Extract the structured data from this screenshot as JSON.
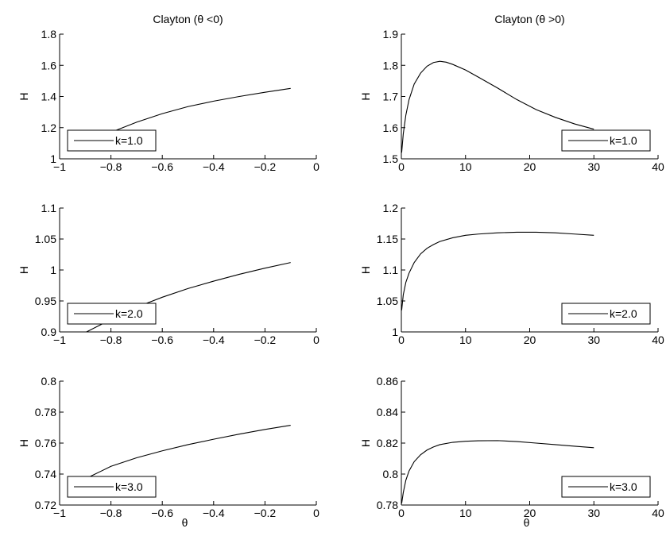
{
  "chart_data": [
    {
      "type": "line",
      "title": "Clayton (θ <0)",
      "xlabel": "",
      "ylabel": "H",
      "xlim": [
        -1,
        0
      ],
      "ylim": [
        1,
        1.8
      ],
      "xticks": [
        -1,
        -0.8,
        -0.6,
        -0.4,
        -0.2,
        0
      ],
      "xtick_labels": [
        "−1",
        "−0.8",
        "−0.6",
        "−0.4",
        "−0.2",
        "0"
      ],
      "yticks": [
        1,
        1.2,
        1.4,
        1.6,
        1.8
      ],
      "ytick_labels": [
        "1",
        "1.2",
        "1.4",
        "1.6",
        "1.8"
      ],
      "legend": "bottom-left",
      "series": [
        {
          "name": "k=1.0",
          "x": [
            -0.8,
            -0.7,
            -0.6,
            -0.5,
            -0.4,
            -0.3,
            -0.2,
            -0.1
          ],
          "y": [
            1.17,
            1.235,
            1.29,
            1.335,
            1.37,
            1.4,
            1.427,
            1.452
          ]
        }
      ]
    },
    {
      "type": "line",
      "title": "Clayton (θ >0)",
      "xlabel": "",
      "ylabel": "H",
      "xlim": [
        0,
        40
      ],
      "ylim": [
        1.5,
        1.9
      ],
      "xticks": [
        0,
        10,
        20,
        30,
        40
      ],
      "xtick_labels": [
        "0",
        "10",
        "20",
        "30",
        "40"
      ],
      "yticks": [
        1.5,
        1.6,
        1.7,
        1.8,
        1.9
      ],
      "ytick_labels": [
        "1.5",
        "1.6",
        "1.7",
        "1.8",
        "1.9"
      ],
      "legend": "bottom-right",
      "series": [
        {
          "name": "k=1.0",
          "x": [
            0.05,
            0.3,
            0.7,
            1.2,
            2,
            3,
            4,
            5,
            6,
            7,
            8,
            10,
            12,
            15,
            18,
            21,
            24,
            27,
            30
          ],
          "y": [
            1.52,
            1.58,
            1.64,
            1.69,
            1.74,
            1.775,
            1.797,
            1.809,
            1.813,
            1.81,
            1.803,
            1.785,
            1.762,
            1.727,
            1.69,
            1.658,
            1.633,
            1.612,
            1.595
          ]
        }
      ]
    },
    {
      "type": "line",
      "title": "",
      "xlabel": "",
      "ylabel": "H",
      "xlim": [
        -1,
        0
      ],
      "ylim": [
        0.9,
        1.1
      ],
      "xticks": [
        -1,
        -0.8,
        -0.6,
        -0.4,
        -0.2,
        0
      ],
      "xtick_labels": [
        "−1",
        "−0.8",
        "−0.6",
        "−0.4",
        "−0.2",
        "0"
      ],
      "yticks": [
        0.9,
        0.95,
        1,
        1.05,
        1.1
      ],
      "ytick_labels": [
        "0.9",
        "0.95",
        "1",
        "1.05",
        "1.1"
      ],
      "legend": "bottom-left",
      "series": [
        {
          "name": "k=2.0",
          "x": [
            -0.9,
            -0.8,
            -0.7,
            -0.6,
            -0.5,
            -0.4,
            -0.3,
            -0.2,
            -0.1
          ],
          "y": [
            0.899,
            0.92,
            0.94,
            0.956,
            0.97,
            0.982,
            0.993,
            1.003,
            1.012
          ]
        }
      ]
    },
    {
      "type": "line",
      "title": "",
      "xlabel": "",
      "ylabel": "H",
      "xlim": [
        0,
        40
      ],
      "ylim": [
        1,
        1.2
      ],
      "xticks": [
        0,
        10,
        20,
        30,
        40
      ],
      "xtick_labels": [
        "0",
        "10",
        "20",
        "30",
        "40"
      ],
      "yticks": [
        1,
        1.05,
        1.1,
        1.15,
        1.2
      ],
      "ytick_labels": [
        "1",
        "1.05",
        "1.1",
        "1.15",
        "1.2"
      ],
      "legend": "bottom-right",
      "series": [
        {
          "name": "k=2.0",
          "x": [
            0.05,
            0.3,
            0.7,
            1.2,
            2,
            3,
            4,
            5,
            6,
            8,
            10,
            12,
            15,
            18,
            21,
            24,
            27,
            30
          ],
          "y": [
            1.035,
            1.06,
            1.08,
            1.095,
            1.112,
            1.126,
            1.135,
            1.141,
            1.146,
            1.152,
            1.156,
            1.158,
            1.16,
            1.161,
            1.161,
            1.16,
            1.158,
            1.156
          ]
        }
      ]
    },
    {
      "type": "line",
      "title": "",
      "xlabel": "θ",
      "ylabel": "H",
      "xlim": [
        -1,
        0
      ],
      "ylim": [
        0.72,
        0.8
      ],
      "xticks": [
        -1,
        -0.8,
        -0.6,
        -0.4,
        -0.2,
        0
      ],
      "xtick_labels": [
        "−1",
        "−0.8",
        "−0.6",
        "−0.4",
        "−0.2",
        "0"
      ],
      "yticks": [
        0.72,
        0.74,
        0.76,
        0.78,
        0.8
      ],
      "ytick_labels": [
        "0.72",
        "0.74",
        "0.76",
        "0.78",
        "0.8"
      ],
      "legend": "bottom-left",
      "series": [
        {
          "name": "k=3.0",
          "x": [
            -0.88,
            -0.8,
            -0.7,
            -0.6,
            -0.5,
            -0.4,
            -0.3,
            -0.2,
            -0.1
          ],
          "y": [
            0.7385,
            0.745,
            0.7505,
            0.755,
            0.759,
            0.7625,
            0.7658,
            0.7688,
            0.7715
          ]
        }
      ]
    },
    {
      "type": "line",
      "title": "",
      "xlabel": "θ",
      "ylabel": "H",
      "xlim": [
        0,
        40
      ],
      "ylim": [
        0.78,
        0.86
      ],
      "xticks": [
        0,
        10,
        20,
        30,
        40
      ],
      "xtick_labels": [
        "0",
        "10",
        "20",
        "30",
        "40"
      ],
      "yticks": [
        0.78,
        0.8,
        0.82,
        0.84,
        0.86
      ],
      "ytick_labels": [
        "0.78",
        "0.8",
        "0.82",
        "0.84",
        "0.86"
      ],
      "legend": "bottom-right",
      "series": [
        {
          "name": "k=3.0",
          "x": [
            0.05,
            0.3,
            0.7,
            1.2,
            2,
            3,
            4,
            5,
            6,
            8,
            10,
            12,
            15,
            18,
            21,
            24,
            27,
            30
          ],
          "y": [
            0.781,
            0.788,
            0.796,
            0.802,
            0.808,
            0.8125,
            0.8155,
            0.8175,
            0.819,
            0.8205,
            0.8212,
            0.8215,
            0.8216,
            0.821,
            0.82,
            0.819,
            0.818,
            0.817
          ]
        }
      ]
    }
  ]
}
